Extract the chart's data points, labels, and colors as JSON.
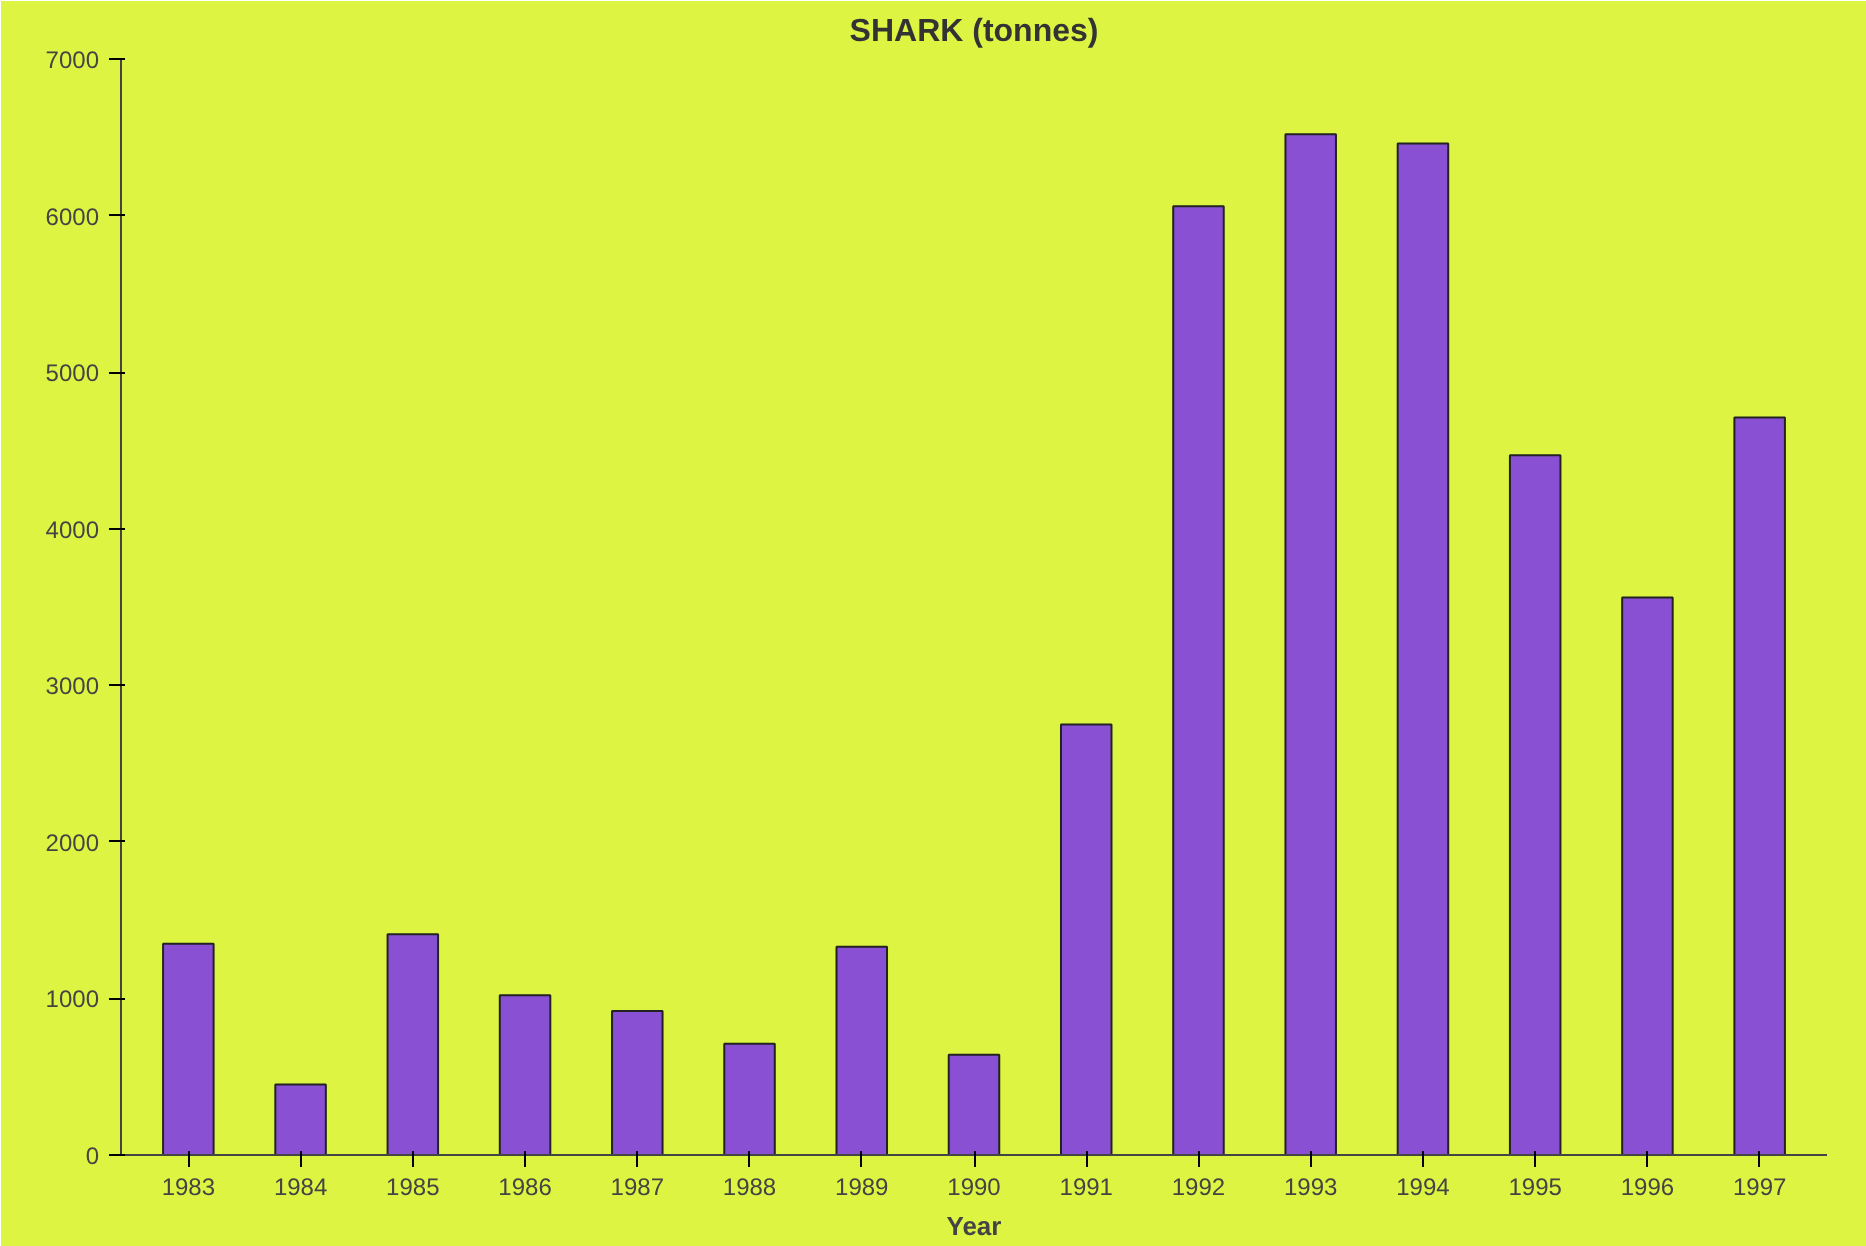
{
  "chart_data": {
    "type": "bar",
    "title": "SHARK (tonnes)",
    "xlabel": "Year",
    "categories": [
      "1983",
      "1984",
      "1985",
      "1986",
      "1987",
      "1988",
      "1989",
      "1990",
      "1991",
      "1992",
      "1993",
      "1994",
      "1995",
      "1996",
      "1997"
    ],
    "values": [
      1350,
      450,
      1410,
      1020,
      920,
      710,
      1330,
      640,
      2750,
      6060,
      6520,
      6460,
      4470,
      3560,
      4710
    ],
    "color": "#8a50d4",
    "ylim": [
      0,
      7000
    ],
    "yticks": [
      0,
      1000,
      2000,
      3000,
      4000,
      5000,
      6000,
      7000
    ],
    "grid": false
  }
}
